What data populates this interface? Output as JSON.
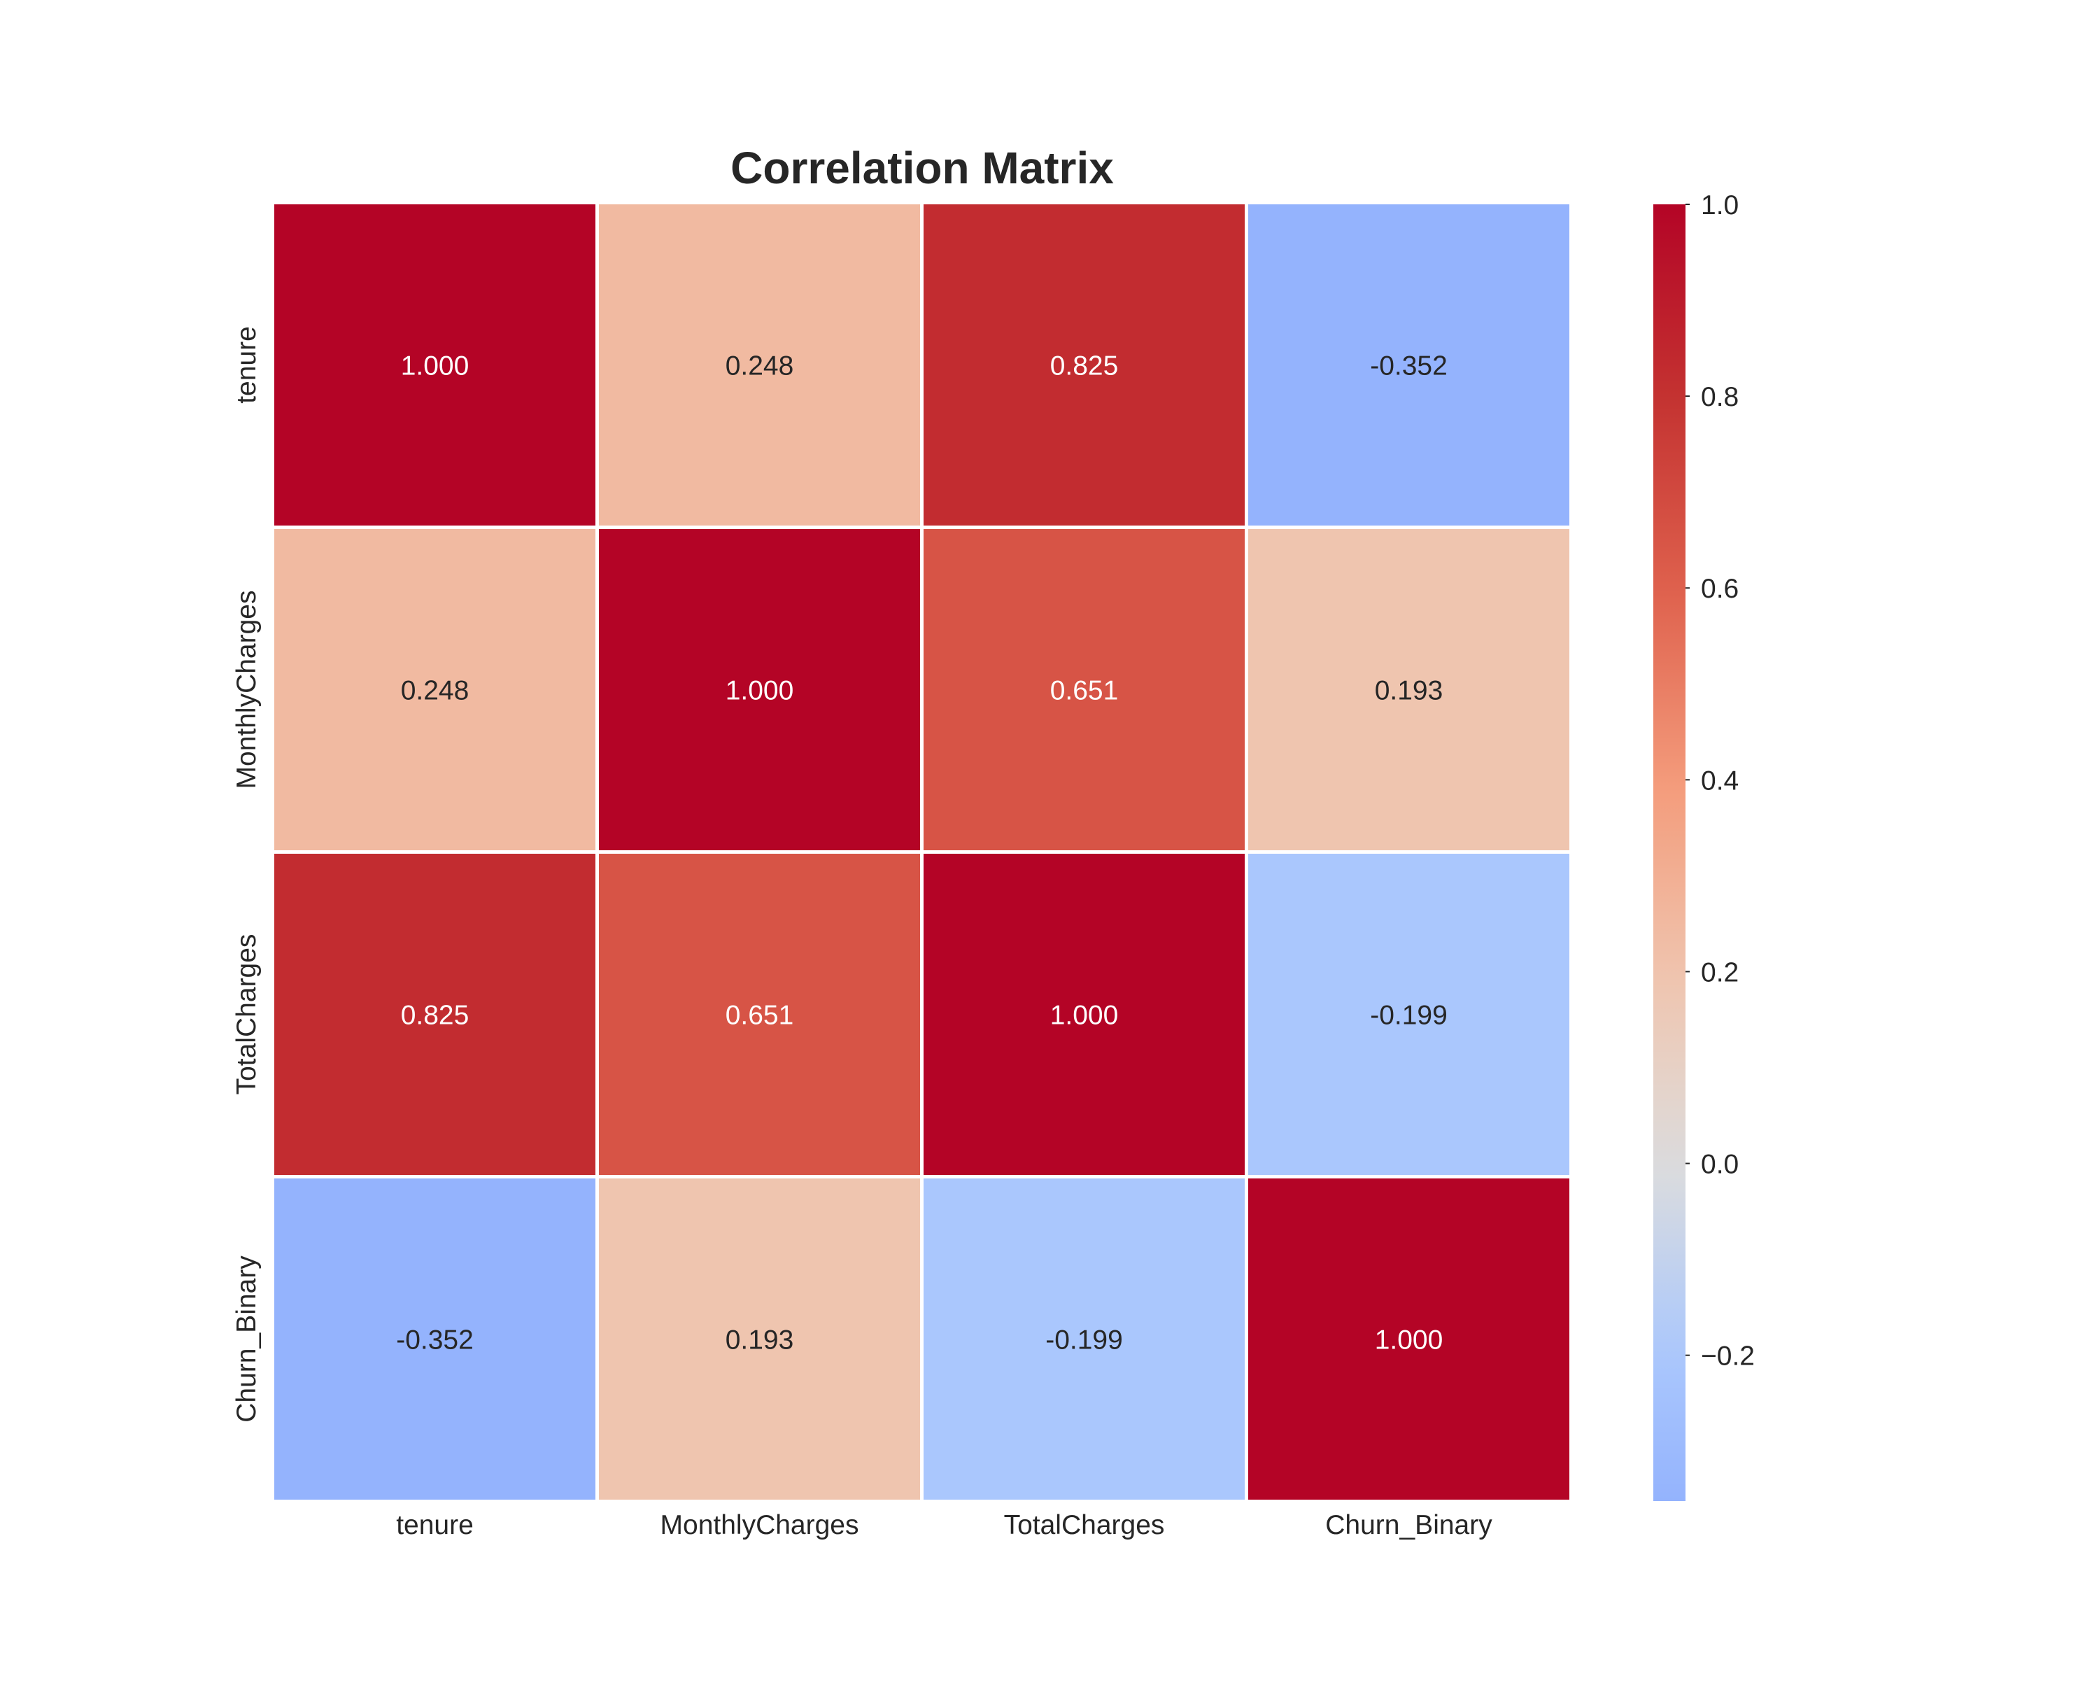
{
  "chart_data": {
    "type": "heatmap",
    "title": "Correlation Matrix",
    "row_labels": [
      "tenure",
      "MonthlyCharges",
      "TotalCharges",
      "Churn_Binary"
    ],
    "col_labels": [
      "tenure",
      "MonthlyCharges",
      "TotalCharges",
      "Churn_Binary"
    ],
    "values": [
      [
        1.0,
        0.248,
        0.825,
        -0.352
      ],
      [
        0.248,
        1.0,
        0.651,
        0.193
      ],
      [
        0.825,
        0.651,
        1.0,
        -0.199
      ],
      [
        -0.352,
        0.193,
        -0.199,
        1.0
      ]
    ],
    "cell_labels": [
      [
        "1.000",
        "0.248",
        "0.825",
        "-0.352"
      ],
      [
        "0.248",
        "1.000",
        "0.651",
        "0.193"
      ],
      [
        "0.825",
        "0.651",
        "1.000",
        "-0.199"
      ],
      [
        "-0.352",
        "0.193",
        "-0.199",
        "1.000"
      ]
    ],
    "colormap": "coolwarm",
    "color_center": 0,
    "colorbar": {
      "range": [
        -0.352,
        1.0
      ],
      "ticks": [
        -0.2,
        0.0,
        0.2,
        0.4,
        0.6,
        0.8,
        1.0
      ],
      "tick_labels": [
        "−0.2",
        "0.0",
        "0.2",
        "0.4",
        "0.6",
        "0.8",
        "1.0"
      ]
    },
    "grid": false
  }
}
